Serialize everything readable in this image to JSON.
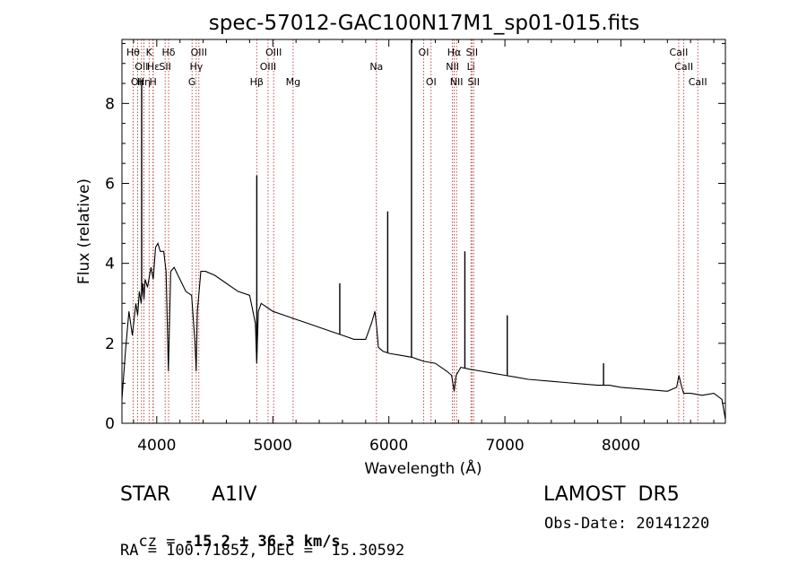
{
  "chart_data": {
    "type": "line",
    "title": "spec-57012-GAC100N17M1_sp01-015.fits",
    "xlabel": "Wavelength (Å)",
    "ylabel": "Flux (relative)",
    "xlim": [
      3700,
      8900
    ],
    "ylim": [
      0,
      9.6
    ],
    "xticks": [
      4000,
      5000,
      6000,
      7000,
      8000
    ],
    "xtick_labels": [
      "4000",
      "5000",
      "6000",
      "7000",
      "8000"
    ],
    "yticks": [
      0,
      2,
      4,
      6,
      8
    ],
    "ytick_labels": [
      "0",
      "2",
      "4",
      "6",
      "8"
    ],
    "grid": false,
    "series": [
      {
        "x": [
          3700,
          3730,
          3760,
          3790,
          3820,
          3835,
          3850,
          3865,
          3880,
          3890,
          3900,
          3920,
          3950,
          3970,
          3990,
          4010,
          4030,
          4060,
          4080,
          4100,
          4120,
          4150,
          4200,
          4250,
          4300,
          4330,
          4340,
          4350,
          4380,
          4420,
          4500,
          4600,
          4700,
          4800,
          4850,
          4861,
          4875,
          4900,
          5000,
          5100,
          5200,
          5300,
          5400,
          5500,
          5600,
          5700,
          5800,
          5850,
          5880,
          5895,
          5910,
          5950,
          6000,
          6100,
          6200,
          6250,
          6300,
          6400,
          6500,
          6540,
          6563,
          6580,
          6620,
          6700,
          6800,
          6900,
          7000,
          7100,
          7200,
          7400,
          7600,
          7800,
          7900,
          8000,
          8200,
          8400,
          8480,
          8500,
          8520,
          8540,
          8600,
          8700,
          8800,
          8870,
          8900
        ],
        "y": [
          0.6,
          1.8,
          2.8,
          2.2,
          3.0,
          2.7,
          3.3,
          3.0,
          3.5,
          3.1,
          3.6,
          3.4,
          3.9,
          3.6,
          4.4,
          4.5,
          4.3,
          4.3,
          3.8,
          1.3,
          3.8,
          3.9,
          3.6,
          3.3,
          3.2,
          2.0,
          1.3,
          2.8,
          3.8,
          3.8,
          3.7,
          3.5,
          3.3,
          3.2,
          2.5,
          1.5,
          2.8,
          3.0,
          2.8,
          2.7,
          2.6,
          2.5,
          2.4,
          2.3,
          2.2,
          2.1,
          2.1,
          2.5,
          2.8,
          2.4,
          1.9,
          1.8,
          1.75,
          1.7,
          1.65,
          1.6,
          1.55,
          1.5,
          1.3,
          1.2,
          0.8,
          1.2,
          1.4,
          1.35,
          1.3,
          1.25,
          1.2,
          1.15,
          1.1,
          1.05,
          1.0,
          0.95,
          0.95,
          0.9,
          0.85,
          0.8,
          0.9,
          1.2,
          0.95,
          0.75,
          0.75,
          0.7,
          0.75,
          0.6,
          0.1
        ],
        "color": "#000000"
      }
    ],
    "spikes": [
      {
        "x": 3870,
        "y": 8.6
      },
      {
        "x": 4862,
        "y": 6.2
      },
      {
        "x": 5577,
        "y": 3.5
      },
      {
        "x": 5990,
        "y": 5.3
      },
      {
        "x": 6195,
        "y": 9.6
      },
      {
        "x": 6655,
        "y": 4.3
      },
      {
        "x": 7020,
        "y": 2.7
      },
      {
        "x": 7850,
        "y": 1.5
      }
    ],
    "line_markers": [
      {
        "x": 3797,
        "row": 1,
        "label": "Hθ"
      },
      {
        "x": 3835,
        "row": 3,
        "label": "OII"
      },
      {
        "x": 3869,
        "row": 2,
        "label": "OII"
      },
      {
        "x": 3889,
        "row": 3,
        "label": "Hη"
      },
      {
        "x": 3934,
        "row": 1,
        "label": "K"
      },
      {
        "x": 3968,
        "row": 3,
        "label": "H"
      },
      {
        "x": 3970,
        "row": 2,
        "label": "Hε"
      },
      {
        "x": 4102,
        "row": 1,
        "label": "Hδ"
      },
      {
        "x": 4072,
        "row": 2,
        "label": "SII"
      },
      {
        "x": 4304,
        "row": 3,
        "label": "G"
      },
      {
        "x": 4340,
        "row": 2,
        "label": "Hγ"
      },
      {
        "x": 4363,
        "row": 1,
        "label": "OIII"
      },
      {
        "x": 4861,
        "row": 3,
        "label": "Hβ"
      },
      {
        "x": 4959,
        "row": 2,
        "label": "OIII"
      },
      {
        "x": 5007,
        "row": 1,
        "label": "OIII"
      },
      {
        "x": 5175,
        "row": 3,
        "label": "Mg"
      },
      {
        "x": 5893,
        "row": 2,
        "label": "Na"
      },
      {
        "x": 6300,
        "row": 1,
        "label": "OI"
      },
      {
        "x": 6364,
        "row": 3,
        "label": "OI"
      },
      {
        "x": 6548,
        "row": 2,
        "label": "NII"
      },
      {
        "x": 6563,
        "row": 1,
        "label": "Hα"
      },
      {
        "x": 6583,
        "row": 3,
        "label": "NII"
      },
      {
        "x": 6707,
        "row": 2,
        "label": "Li"
      },
      {
        "x": 6716,
        "row": 1,
        "label": "SII"
      },
      {
        "x": 6731,
        "row": 3,
        "label": "SII"
      },
      {
        "x": 8498,
        "row": 1,
        "label": "CaII"
      },
      {
        "x": 8542,
        "row": 2,
        "label": "CaII"
      },
      {
        "x": 8662,
        "row": 3,
        "label": "CaII"
      }
    ],
    "marker_color": "#aa2222",
    "line_color": "#000000"
  },
  "info": {
    "class": "STAR",
    "subclass": "A1IV",
    "survey": "LAMOST  DR5",
    "cz_prefix": "cz = ",
    "cz_value": "-15.2 ± 36.3 km/s",
    "obs_date": "Obs-Date: 20141220",
    "radec": "RA = 100.71852, DEC =  15.30592"
  }
}
